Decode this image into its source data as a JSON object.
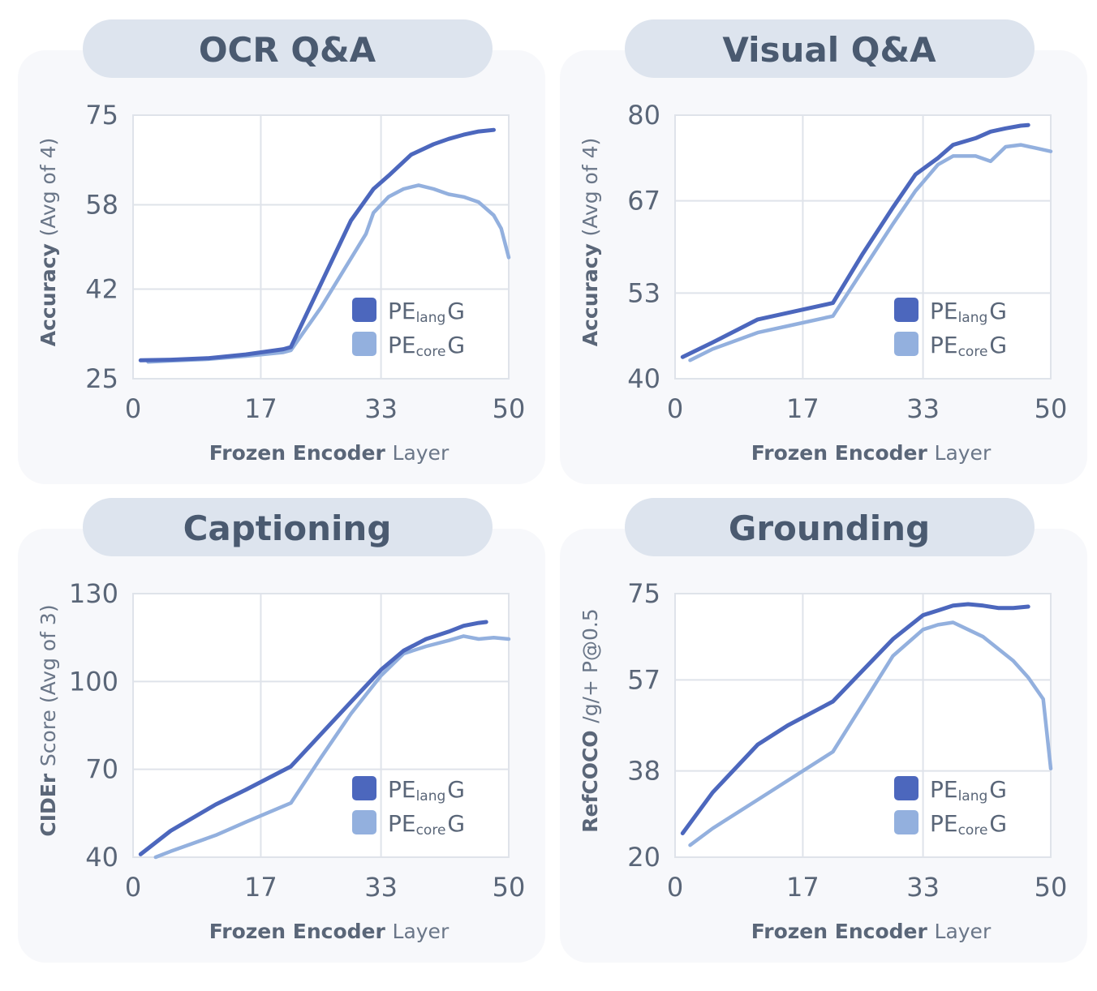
{
  "colors": {
    "lang": "#4c67bd",
    "core": "#93b0de"
  },
  "legend": {
    "lang": {
      "main": "PE",
      "sub": "lang",
      "suffix": "G"
    },
    "core": {
      "main": "PE",
      "sub": "core",
      "suffix": "G"
    }
  },
  "chart_data": [
    {
      "type": "line",
      "title": "OCR Q&A",
      "xlabel_bold": "Frozen Encoder",
      "xlabel_rest": "Layer",
      "ylabel_bold": "Accuracy",
      "ylabel_rest": "(Avg of 4)",
      "xticks": [
        0,
        17,
        33,
        50
      ],
      "yticks": [
        25,
        42,
        58,
        75
      ],
      "xlim": [
        0,
        50
      ],
      "ylim": [
        25,
        75
      ],
      "series": [
        {
          "name": "PElang G",
          "key": "lang",
          "x": [
            1,
            5,
            10,
            15,
            20,
            21,
            25,
            29,
            32,
            34,
            37,
            40,
            42,
            44,
            46,
            48
          ],
          "y": [
            28.5,
            28.6,
            28.9,
            29.6,
            30.6,
            31.0,
            43.0,
            55.0,
            61.0,
            63.5,
            67.5,
            69.5,
            70.5,
            71.3,
            71.9,
            72.2
          ]
        },
        {
          "name": "PEcore G",
          "key": "core",
          "x": [
            2,
            5,
            10,
            15,
            20,
            21,
            25,
            28,
            31,
            32,
            34,
            36,
            38,
            40,
            42,
            44,
            46,
            48,
            49,
            50
          ],
          "y": [
            28.2,
            28.4,
            28.7,
            29.3,
            30.0,
            30.4,
            38.5,
            45.5,
            52.5,
            56.5,
            59.5,
            61.0,
            61.7,
            61.0,
            60.0,
            59.5,
            58.5,
            56.0,
            53.5,
            48.0
          ]
        }
      ]
    },
    {
      "type": "line",
      "title": "Visual Q&A",
      "xlabel_bold": "Frozen Encoder",
      "xlabel_rest": "Layer",
      "ylabel_bold": "Accuracy",
      "ylabel_rest": "(Avg of 4)",
      "xticks": [
        0,
        17,
        33,
        50
      ],
      "yticks": [
        40,
        53,
        67,
        80
      ],
      "xlim": [
        0,
        50
      ],
      "ylim": [
        40,
        80
      ],
      "series": [
        {
          "name": "PElang G",
          "key": "lang",
          "x": [
            1,
            5,
            11,
            15,
            21,
            25,
            29,
            32,
            35,
            37,
            40,
            42,
            44,
            46,
            47
          ],
          "y": [
            43.3,
            45.5,
            49.0,
            50.0,
            51.5,
            59.0,
            66.0,
            71.0,
            73.5,
            75.5,
            76.5,
            77.5,
            78.0,
            78.4,
            78.5
          ]
        },
        {
          "name": "PEcore G",
          "key": "core",
          "x": [
            2,
            5,
            11,
            15,
            21,
            25,
            29,
            32,
            35,
            37,
            40,
            42,
            44,
            46,
            48,
            50
          ],
          "y": [
            42.8,
            44.5,
            47.0,
            48.0,
            49.5,
            56.5,
            63.5,
            68.5,
            72.5,
            73.8,
            73.8,
            73.0,
            75.2,
            75.5,
            75.0,
            74.5
          ]
        }
      ]
    },
    {
      "type": "line",
      "title": "Captioning",
      "xlabel_bold": "Frozen Encoder",
      "xlabel_rest": "Layer",
      "ylabel_bold": "CIDEr",
      "ylabel_rest": "Score (Avg of 3)",
      "xticks": [
        0,
        17,
        33,
        50
      ],
      "yticks": [
        40,
        70,
        100,
        130
      ],
      "xlim": [
        0,
        50
      ],
      "ylim": [
        40,
        130
      ],
      "series": [
        {
          "name": "PElang G",
          "key": "lang",
          "x": [
            1,
            5,
            11,
            15,
            21,
            25,
            29,
            33,
            36,
            39,
            42,
            44,
            46,
            47
          ],
          "y": [
            41.0,
            49.0,
            58.0,
            63.0,
            71.0,
            82.0,
            93.0,
            104.0,
            110.5,
            114.5,
            117.0,
            119.0,
            120.0,
            120.3
          ]
        },
        {
          "name": "PEcore G",
          "key": "core",
          "x": [
            3,
            5,
            11,
            15,
            21,
            25,
            29,
            33,
            36,
            39,
            42,
            44,
            46,
            48,
            50
          ],
          "y": [
            40.0,
            42.0,
            47.5,
            52.0,
            58.5,
            74.0,
            89.0,
            102.0,
            109.5,
            112.0,
            114.0,
            115.5,
            114.5,
            115.0,
            114.5
          ]
        }
      ]
    },
    {
      "type": "line",
      "title": "Grounding",
      "xlabel_bold": "RefCOCO",
      "xlabel_rest": "Layer",
      "ylabel_bold": "RefCOCO",
      "ylabel_rest": "/g/+ P@0.5",
      "xticks": [
        0,
        17,
        33,
        50
      ],
      "yticks": [
        20,
        38,
        57,
        75
      ],
      "xlim": [
        0,
        50
      ],
      "ylim": [
        20,
        75
      ],
      "series": [
        {
          "name": "PElang G",
          "key": "lang",
          "x": [
            1,
            5,
            11,
            15,
            21,
            25,
            29,
            33,
            35,
            37,
            39,
            41,
            43,
            45,
            47
          ],
          "y": [
            25.0,
            33.5,
            43.5,
            47.5,
            52.5,
            59.0,
            65.5,
            70.5,
            71.5,
            72.5,
            72.8,
            72.5,
            72.0,
            72.0,
            72.3
          ]
        },
        {
          "name": "PEcore G",
          "key": "core",
          "x": [
            2,
            5,
            11,
            15,
            21,
            25,
            29,
            33,
            35,
            37,
            39,
            41,
            43,
            45,
            47,
            49,
            50
          ],
          "y": [
            22.5,
            26.0,
            32.0,
            36.0,
            42.0,
            52.0,
            62.0,
            67.5,
            68.5,
            69.0,
            67.5,
            66.0,
            63.5,
            61.0,
            57.5,
            53.0,
            38.5
          ]
        }
      ]
    }
  ],
  "shared_xlabel_bold": "Frozen Encoder",
  "shared_xlabel_rest": "Layer"
}
